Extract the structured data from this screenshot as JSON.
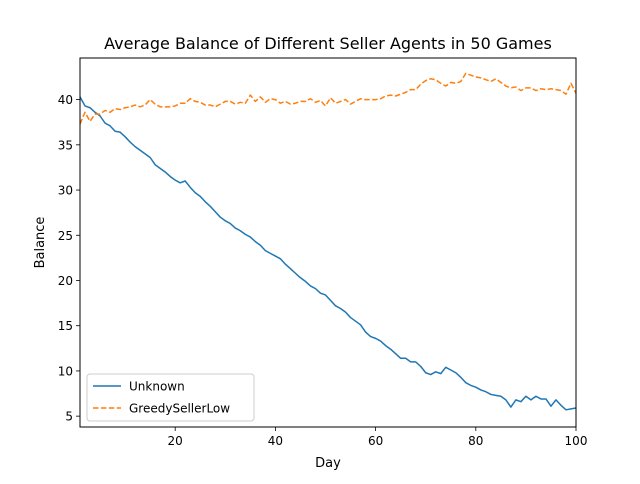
{
  "chart_data": {
    "type": "line",
    "title": "Average Balance of Different Seller Agents in 50 Games",
    "xlabel": "Day",
    "ylabel": "Balance",
    "xlim": [
      1,
      100
    ],
    "ylim": [
      3.8,
      44.6
    ],
    "xticks": [
      20,
      40,
      60,
      80,
      100
    ],
    "yticks": [
      5,
      10,
      15,
      20,
      25,
      30,
      35,
      40
    ],
    "grid": false,
    "legend_position": "lower-left",
    "series": [
      {
        "name": "Unknown",
        "color": "#1f77b4",
        "dash": "solid",
        "x": [
          1,
          2,
          3,
          4,
          5,
          6,
          7,
          8,
          9,
          10,
          11,
          12,
          13,
          14,
          15,
          16,
          17,
          18,
          19,
          20,
          21,
          22,
          23,
          24,
          25,
          26,
          27,
          28,
          29,
          30,
          31,
          32,
          33,
          34,
          35,
          36,
          37,
          38,
          39,
          40,
          41,
          42,
          43,
          44,
          45,
          46,
          47,
          48,
          49,
          50,
          51,
          52,
          53,
          54,
          55,
          56,
          57,
          58,
          59,
          60,
          61,
          62,
          63,
          64,
          65,
          66,
          67,
          68,
          69,
          70,
          71,
          72,
          73,
          74,
          75,
          76,
          77,
          78,
          79,
          80,
          81,
          82,
          83,
          84,
          85,
          86,
          87,
          88,
          89,
          90,
          91,
          92,
          93,
          94,
          95,
          96,
          97,
          98,
          99,
          100
        ],
        "values": [
          40.3,
          39.3,
          39.1,
          38.6,
          38.2,
          37.4,
          37.1,
          36.5,
          36.4,
          35.9,
          35.3,
          34.8,
          34.4,
          34.0,
          33.6,
          32.8,
          32.4,
          32.0,
          31.5,
          31.1,
          30.8,
          31.0,
          30.3,
          29.7,
          29.3,
          28.7,
          28.2,
          27.6,
          27.0,
          26.6,
          26.3,
          25.8,
          25.5,
          25.1,
          24.8,
          24.3,
          23.9,
          23.3,
          23.0,
          22.7,
          22.4,
          21.8,
          21.3,
          20.8,
          20.3,
          19.9,
          19.4,
          19.1,
          18.6,
          18.4,
          17.8,
          17.2,
          16.9,
          16.5,
          15.9,
          15.5,
          15.1,
          14.3,
          13.8,
          13.6,
          13.3,
          12.8,
          12.4,
          11.9,
          11.4,
          11.4,
          11.0,
          11.0,
          10.5,
          9.8,
          9.6,
          9.9,
          9.7,
          10.4,
          10.1,
          9.8,
          9.3,
          8.7,
          8.4,
          8.2,
          7.9,
          7.7,
          7.4,
          7.3,
          7.2,
          6.8,
          6.0,
          6.8,
          6.6,
          7.2,
          6.8,
          7.2,
          6.9,
          6.9,
          6.1,
          6.8,
          6.2,
          5.7,
          5.8,
          5.9
        ]
      },
      {
        "name": "GreedySellerLow",
        "color": "#ff7f0e",
        "dash": "dashed",
        "x": [
          1,
          2,
          3,
          4,
          5,
          6,
          7,
          8,
          9,
          10,
          11,
          12,
          13,
          14,
          15,
          16,
          17,
          18,
          19,
          20,
          21,
          22,
          23,
          24,
          25,
          26,
          27,
          28,
          29,
          30,
          31,
          32,
          33,
          34,
          35,
          36,
          37,
          38,
          39,
          40,
          41,
          42,
          43,
          44,
          45,
          46,
          47,
          48,
          49,
          50,
          51,
          52,
          53,
          54,
          55,
          56,
          57,
          58,
          59,
          60,
          61,
          62,
          63,
          64,
          65,
          66,
          67,
          68,
          69,
          70,
          71,
          72,
          73,
          74,
          75,
          76,
          77,
          78,
          79,
          80,
          81,
          82,
          83,
          84,
          85,
          86,
          87,
          88,
          89,
          90,
          91,
          92,
          93,
          94,
          95,
          96,
          97,
          98,
          99,
          100
        ],
        "values": [
          37.3,
          38.6,
          37.6,
          38.4,
          38.4,
          38.8,
          38.6,
          39.0,
          38.9,
          39.1,
          39.2,
          39.4,
          39.2,
          39.4,
          40.0,
          39.5,
          39.2,
          39.2,
          39.2,
          39.3,
          39.6,
          39.6,
          40.1,
          39.8,
          39.7,
          39.4,
          39.4,
          39.2,
          39.5,
          39.8,
          39.8,
          39.5,
          39.7,
          39.6,
          40.5,
          39.8,
          40.3,
          39.7,
          40.1,
          40.0,
          39.6,
          39.8,
          39.5,
          39.6,
          39.8,
          39.8,
          40.1,
          39.7,
          39.9,
          39.3,
          40.2,
          39.6,
          39.8,
          40.0,
          39.5,
          39.8,
          40.1,
          40.0,
          40.0,
          40.0,
          40.1,
          40.4,
          40.5,
          40.4,
          40.6,
          40.8,
          41.1,
          41.1,
          41.7,
          42.1,
          42.3,
          42.2,
          41.8,
          41.5,
          41.9,
          41.8,
          42.0,
          42.9,
          42.7,
          42.5,
          42.4,
          42.2,
          42.0,
          42.3,
          41.9,
          41.5,
          41.3,
          41.4,
          41.0,
          41.3,
          41.3,
          41.0,
          41.2,
          41.1,
          41.2,
          41.1,
          41.0,
          40.6,
          41.8,
          40.7
        ]
      }
    ]
  }
}
